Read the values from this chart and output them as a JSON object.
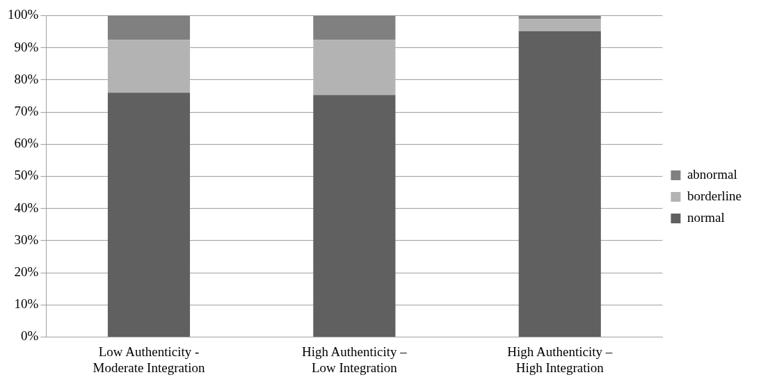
{
  "chart_data": {
    "type": "bar",
    "stacked": true,
    "categories": [
      "Low Authenticity - Moderate Integration",
      "High Authenticity – Low Integration",
      "High Authenticity – High Integration"
    ],
    "series": [
      {
        "name": "normal",
        "color": "#606060",
        "values": [
          76.0,
          75.3,
          95.1
        ]
      },
      {
        "name": "borderline",
        "color": "#b3b3b3",
        "values": [
          16.4,
          17.1,
          3.8
        ]
      },
      {
        "name": "abnormal",
        "color": "#808080",
        "values": [
          7.6,
          7.6,
          1.1
        ]
      }
    ],
    "ylim": [
      0,
      100
    ],
    "yticks": [
      {
        "value": 0,
        "label": "0%"
      },
      {
        "value": 10,
        "label": "10%"
      },
      {
        "value": 20,
        "label": "20%"
      },
      {
        "value": 30,
        "label": "30%"
      },
      {
        "value": 40,
        "label": "40%"
      },
      {
        "value": 50,
        "label": "50%"
      },
      {
        "value": 60,
        "label": "60%"
      },
      {
        "value": 70,
        "label": "70%"
      },
      {
        "value": 80,
        "label": "80%"
      },
      {
        "value": 90,
        "label": "90%"
      },
      {
        "value": 100,
        "label": "100%"
      }
    ],
    "grid": "y",
    "legend": "right"
  }
}
